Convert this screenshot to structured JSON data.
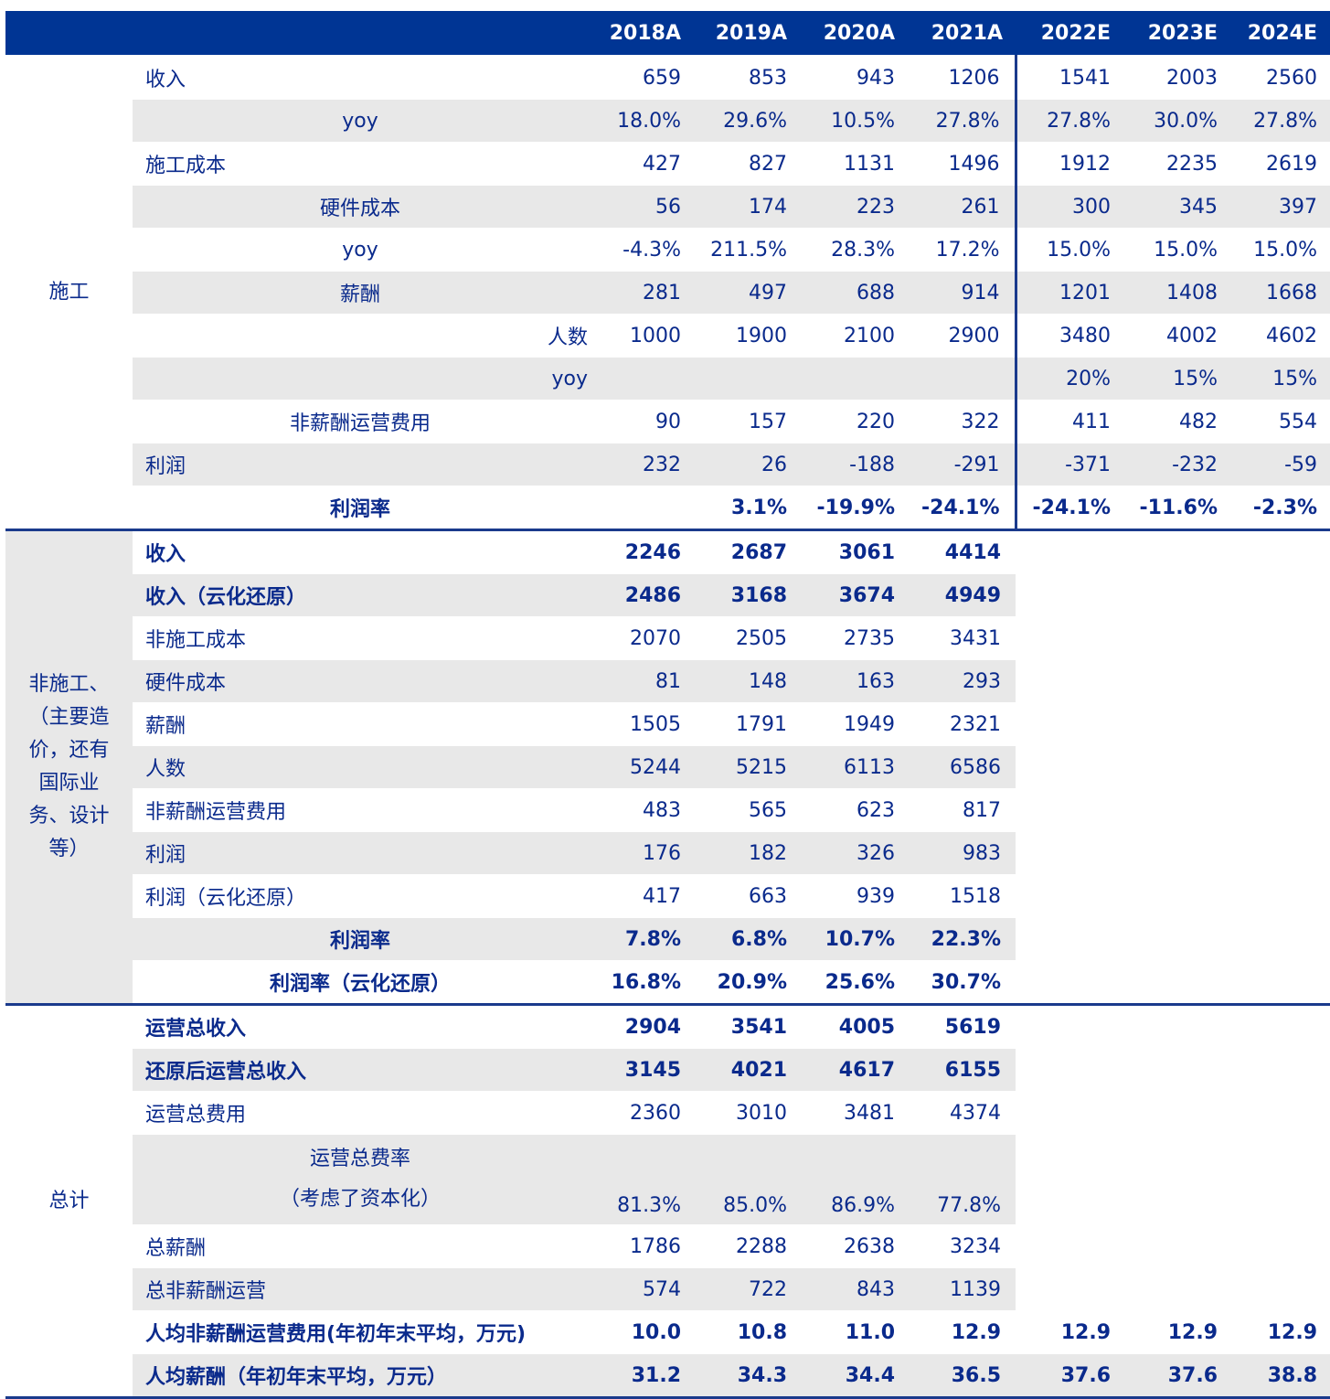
{
  "header": [
    "",
    "",
    "2018A",
    "2019A",
    "2020A",
    "2021A",
    "2022E",
    "2023E",
    "2024E"
  ],
  "sections": [
    {
      "title": "施工",
      "rows": [
        {
          "label": "收入",
          "align": "left",
          "gray": false,
          "bold": false,
          "values": [
            "659",
            "853",
            "943",
            "1206",
            "1541",
            "2003",
            "2560"
          ]
        },
        {
          "label": "yoy",
          "align": "center",
          "gray": true,
          "bold": false,
          "values": [
            "18.0%",
            "29.6%",
            "10.5%",
            "27.8%",
            "27.8%",
            "30.0%",
            "27.8%"
          ]
        },
        {
          "label": "施工成本",
          "align": "left",
          "gray": false,
          "bold": false,
          "values": [
            "427",
            "827",
            "1131",
            "1496",
            "1912",
            "2235",
            "2619"
          ]
        },
        {
          "label": "硬件成本",
          "align": "center",
          "gray": true,
          "bold": false,
          "values": [
            "56",
            "174",
            "223",
            "261",
            "300",
            "345",
            "397"
          ]
        },
        {
          "label": "yoy",
          "align": "center",
          "gray": false,
          "bold": false,
          "values": [
            "-4.3%",
            "211.5%",
            "28.3%",
            "17.2%",
            "15.0%",
            "15.0%",
            "15.0%"
          ]
        },
        {
          "label": "薪酬",
          "align": "center",
          "gray": true,
          "bold": false,
          "values": [
            "281",
            "497",
            "688",
            "914",
            "1201",
            "1408",
            "1668"
          ]
        },
        {
          "label": "人数",
          "align": "right",
          "gray": false,
          "bold": false,
          "values": [
            "1000",
            "1900",
            "2100",
            "2900",
            "3480",
            "4002",
            "4602"
          ]
        },
        {
          "label": "yoy",
          "align": "right",
          "gray": true,
          "bold": false,
          "values": [
            "",
            "",
            "",
            "",
            "20%",
            "15%",
            "15%"
          ]
        },
        {
          "label": "非薪酬运营费用",
          "align": "center",
          "gray": false,
          "bold": false,
          "values": [
            "90",
            "157",
            "220",
            "322",
            "411",
            "482",
            "554"
          ]
        },
        {
          "label": "利润",
          "align": "left",
          "gray": true,
          "bold": false,
          "values": [
            "232",
            "26",
            "-188",
            "-291",
            "-371",
            "-232",
            "-59"
          ]
        },
        {
          "label": "利润率",
          "align": "center",
          "gray": false,
          "bold": true,
          "values": [
            "",
            "3.1%",
            "-19.9%",
            "-24.1%",
            "-24.1%",
            "-11.6%",
            "-2.3%"
          ]
        }
      ]
    },
    {
      "title": "非施工、（主要造价，还有国际业务、设计等）",
      "title_lines": [
        "非施工、",
        "（主要造",
        "价，还有",
        "国际业",
        "务、设计",
        "等）"
      ],
      "rows": [
        {
          "label": "收入",
          "align": "left",
          "gray": false,
          "bold": true,
          "values": [
            "2246",
            "2687",
            "3061",
            "4414",
            "",
            "",
            ""
          ]
        },
        {
          "label": "收入（云化还原）",
          "align": "left",
          "gray": true,
          "bold": true,
          "values": [
            "2486",
            "3168",
            "3674",
            "4949",
            "",
            "",
            ""
          ]
        },
        {
          "label": "非施工成本",
          "align": "left",
          "gray": false,
          "bold": false,
          "values": [
            "2070",
            "2505",
            "2735",
            "3431",
            "",
            "",
            ""
          ]
        },
        {
          "label": "硬件成本",
          "align": "left",
          "gray": true,
          "bold": false,
          "values": [
            "81",
            "148",
            "163",
            "293",
            "",
            "",
            ""
          ]
        },
        {
          "label": "薪酬",
          "align": "left",
          "gray": false,
          "bold": false,
          "values": [
            "1505",
            "1791",
            "1949",
            "2321",
            "",
            "",
            ""
          ]
        },
        {
          "label": "人数",
          "align": "left",
          "gray": true,
          "bold": false,
          "values": [
            "5244",
            "5215",
            "6113",
            "6586",
            "",
            "",
            ""
          ]
        },
        {
          "label": "非薪酬运营费用",
          "align": "left",
          "gray": false,
          "bold": false,
          "values": [
            "483",
            "565",
            "623",
            "817",
            "",
            "",
            ""
          ]
        },
        {
          "label": "利润",
          "align": "left",
          "gray": true,
          "bold": false,
          "values": [
            "176",
            "182",
            "326",
            "983",
            "",
            "",
            ""
          ]
        },
        {
          "label": "利润（云化还原）",
          "align": "left",
          "gray": false,
          "bold": false,
          "values": [
            "417",
            "663",
            "939",
            "1518",
            "",
            "",
            ""
          ]
        },
        {
          "label": "利润率",
          "align": "center",
          "gray": true,
          "bold": true,
          "values": [
            "7.8%",
            "6.8%",
            "10.7%",
            "22.3%",
            "",
            "",
            ""
          ]
        },
        {
          "label": "利润率（云化还原）",
          "align": "center",
          "gray": false,
          "bold": true,
          "values": [
            "16.8%",
            "20.9%",
            "25.6%",
            "30.7%",
            "",
            "",
            ""
          ]
        }
      ]
    },
    {
      "title": "总计",
      "rows": [
        {
          "label": "运营总收入",
          "align": "left",
          "gray": false,
          "bold": true,
          "values": [
            "2904",
            "3541",
            "4005",
            "5619",
            "",
            "",
            ""
          ]
        },
        {
          "label": "还原后运营总收入",
          "align": "left",
          "gray": true,
          "bold": true,
          "values": [
            "3145",
            "4021",
            "4617",
            "6155",
            "",
            "",
            ""
          ]
        },
        {
          "label": "运营总费用",
          "align": "left",
          "gray": false,
          "bold": false,
          "values": [
            "2360",
            "3010",
            "3481",
            "4374",
            "",
            "",
            ""
          ]
        },
        {
          "label": "运营总费率\n（考虑了资本化）",
          "label_lines": [
            "运营总费率",
            "（考虑了资本化）"
          ],
          "align": "center",
          "gray": true,
          "bold": false,
          "tall": true,
          "values": [
            "81.3%",
            "85.0%",
            "86.9%",
            "77.8%",
            "",
            "",
            ""
          ]
        },
        {
          "label": "总薪酬",
          "align": "left",
          "gray": false,
          "bold": false,
          "values": [
            "1786",
            "2288",
            "2638",
            "3234",
            "",
            "",
            ""
          ]
        },
        {
          "label": "总非薪酬运营",
          "align": "left",
          "gray": true,
          "bold": false,
          "values": [
            "574",
            "722",
            "843",
            "1139",
            "",
            "",
            ""
          ]
        },
        {
          "label": "人均非薪酬运营费用(年初年末平均，万元)",
          "align": "left",
          "gray": false,
          "bold": true,
          "values": [
            "10.0",
            "10.8",
            "11.0",
            "12.9",
            "12.9",
            "12.9",
            "12.9"
          ]
        },
        {
          "label": "人均薪酬（年初年末平均，万元）",
          "align": "left",
          "gray": true,
          "bold": true,
          "values": [
            "31.2",
            "34.3",
            "34.4",
            "36.5",
            "37.6",
            "37.6",
            "38.8"
          ]
        }
      ]
    }
  ],
  "colors": {
    "header_bg": "#003594",
    "text": "#0a2a8c",
    "stripe": "#e8e8e8",
    "rule": "#1a3a8c"
  }
}
